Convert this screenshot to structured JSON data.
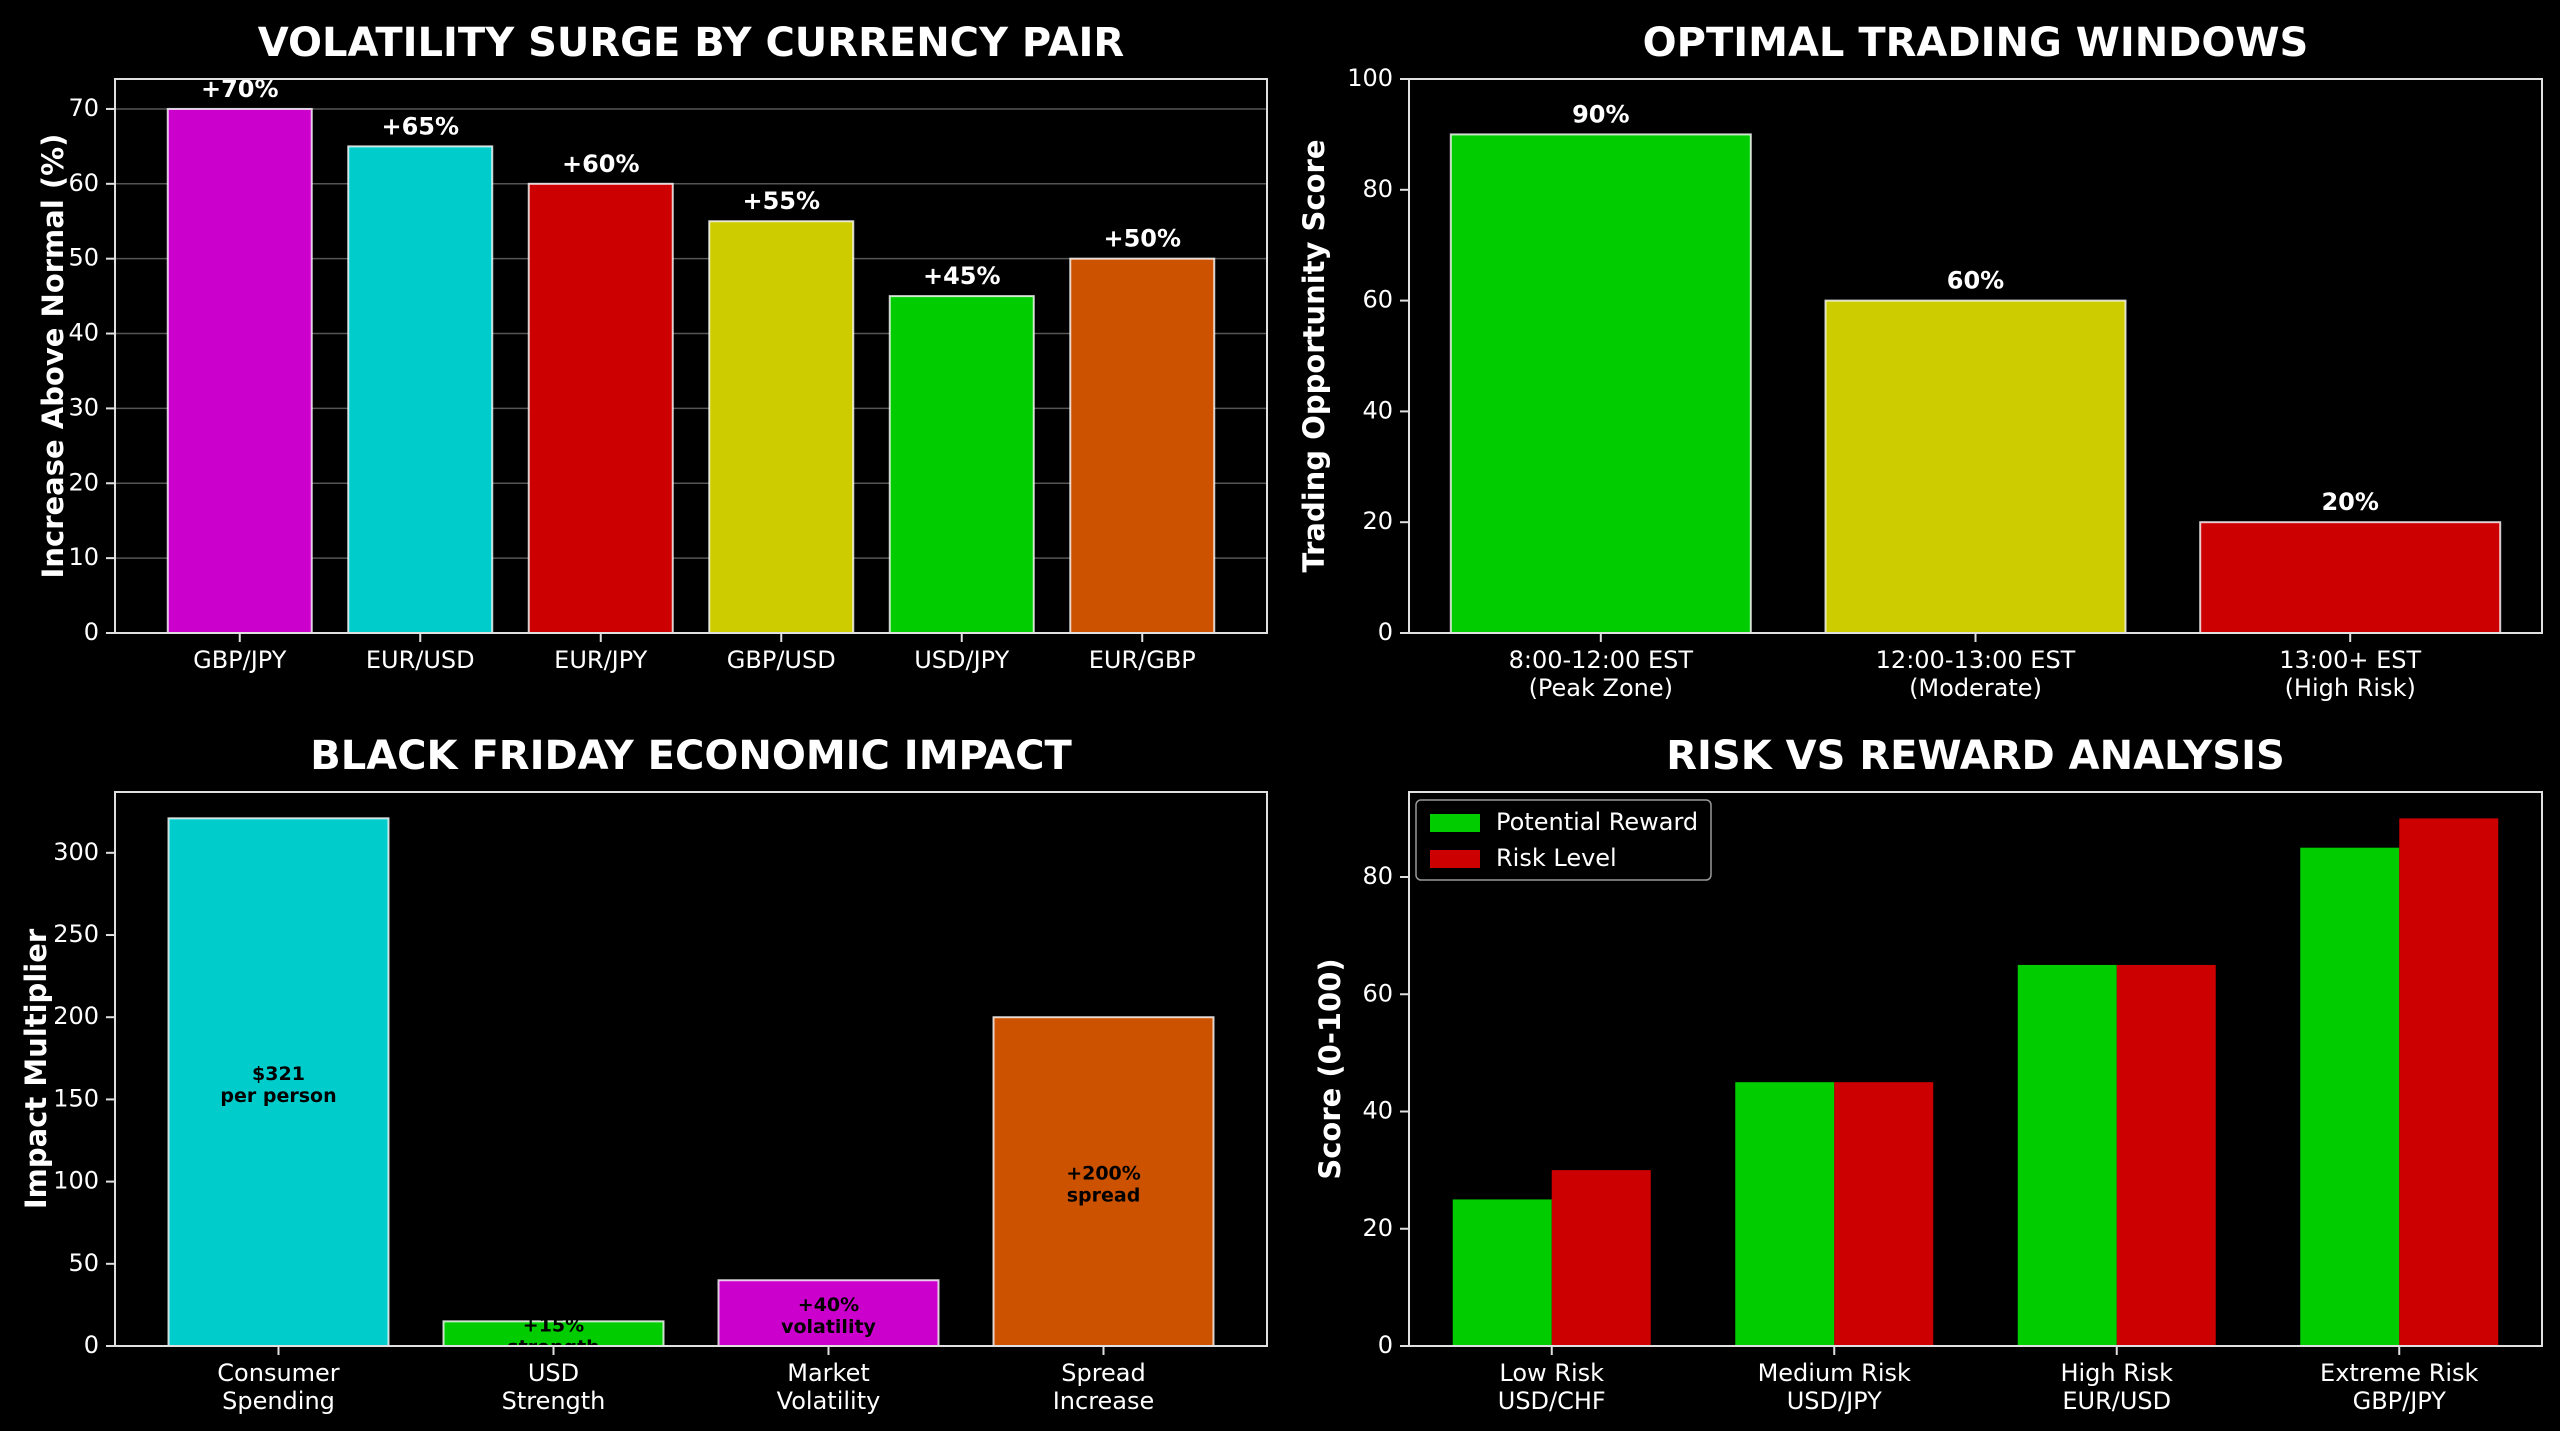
{
  "chart_data": [
    {
      "type": "bar",
      "title": "VOLATILITY SURGE BY CURRENCY PAIR",
      "xlabel": "",
      "ylabel": "Increase Above Normal (%)",
      "categories": [
        "GBP/JPY",
        "EUR/USD",
        "EUR/JPY",
        "GBP/USD",
        "USD/JPY",
        "EUR/GBP"
      ],
      "values": [
        70,
        65,
        60,
        55,
        45,
        50
      ],
      "data_labels": [
        "+70%",
        "+65%",
        "+60%",
        "+55%",
        "+45%",
        "+50%"
      ],
      "colors": [
        "#cc00cc",
        "#00cccc",
        "#cc0000",
        "#cccc00",
        "#00cc00",
        "#cc5200"
      ],
      "ylim": [
        0,
        74
      ],
      "yticks": [
        0,
        10,
        20,
        30,
        40,
        50,
        60,
        70
      ],
      "grid": true
    },
    {
      "type": "bar",
      "title": "OPTIMAL TRADING WINDOWS",
      "xlabel": "",
      "ylabel": "Trading Opportunity Score",
      "categories": [
        [
          "8:00-12:00 EST",
          "(Peak Zone)"
        ],
        [
          "12:00-13:00 EST",
          "(Moderate)"
        ],
        [
          "13:00+ EST",
          "(High Risk)"
        ]
      ],
      "values": [
        90,
        60,
        20
      ],
      "data_labels": [
        "90%",
        "60%",
        "20%"
      ],
      "colors": [
        "#00cc00",
        "#cccc00",
        "#cc0000"
      ],
      "ylim": [
        0,
        100
      ],
      "yticks": [
        0,
        20,
        40,
        60,
        80,
        100
      ],
      "grid": false
    },
    {
      "type": "bar",
      "title": "BLACK FRIDAY ECONOMIC IMPACT",
      "xlabel": "",
      "ylabel": "Impact Multiplier",
      "categories": [
        [
          "Consumer",
          "Spending"
        ],
        [
          "USD",
          "Strength"
        ],
        [
          "Market",
          "Volatility"
        ],
        [
          "Spread",
          "Increase"
        ]
      ],
      "values": [
        321,
        15,
        40,
        200
      ],
      "inner_labels": [
        [
          "$321",
          "per person"
        ],
        [
          "+15%",
          "strength"
        ],
        [
          "+40%",
          "volatility"
        ],
        [
          "+200%",
          "spread"
        ]
      ],
      "colors": [
        "#00cccc",
        "#00cc00",
        "#cc00cc",
        "#cc5200"
      ],
      "ylim": [
        0,
        337
      ],
      "yticks": [
        0,
        50,
        100,
        150,
        200,
        250,
        300
      ],
      "grid": false
    },
    {
      "type": "bar",
      "title": "RISK VS REWARD ANALYSIS",
      "xlabel": "",
      "ylabel": "Score (0-100)",
      "categories": [
        [
          "Low Risk",
          "USD/CHF"
        ],
        [
          "Medium Risk",
          "USD/JPY"
        ],
        [
          "High Risk",
          "EUR/USD"
        ],
        [
          "Extreme Risk",
          "GBP/JPY"
        ]
      ],
      "series": [
        {
          "name": "Potential Reward",
          "values": [
            25,
            45,
            65,
            85
          ],
          "color": "#00cc00"
        },
        {
          "name": "Risk Level",
          "values": [
            30,
            45,
            65,
            90
          ],
          "color": "#cc0000"
        }
      ],
      "legend_position": "top-left",
      "ylim": [
        0,
        94.5
      ],
      "yticks": [
        0,
        20,
        40,
        60,
        80
      ],
      "grid": false
    }
  ]
}
